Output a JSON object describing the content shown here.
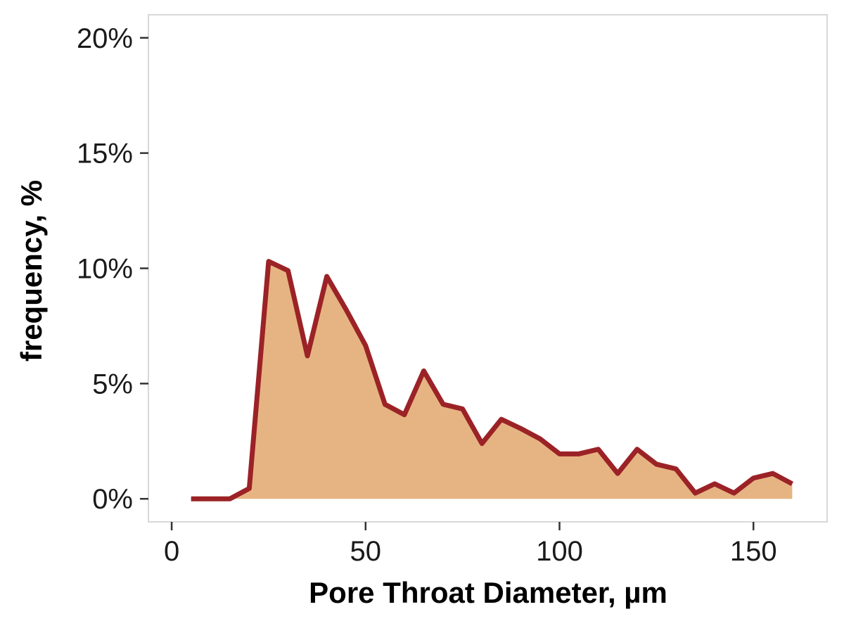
{
  "chart_data": {
    "type": "area",
    "title": "",
    "xlabel": "Pore Throat Diameter, µm",
    "ylabel": "frequency, %",
    "xlim": [
      -6,
      169
    ],
    "ylim": [
      -1,
      21
    ],
    "x_ticks": [
      0,
      50,
      100,
      150
    ],
    "x_tick_labels": [
      "0",
      "50",
      "100",
      "150"
    ],
    "y_ticks": [
      0,
      5,
      10,
      15,
      20
    ],
    "y_tick_labels": [
      "0%",
      "5%",
      "10%",
      "15%",
      "20%"
    ],
    "grid": false,
    "legend": "none",
    "series": [
      {
        "x": [
          5,
          10,
          15,
          20,
          25,
          30,
          35,
          40,
          45,
          50,
          55,
          60,
          65,
          70,
          75,
          80,
          85,
          90,
          95,
          100,
          105,
          110,
          115,
          120,
          125,
          130,
          135,
          140,
          145,
          150,
          155,
          160
        ],
        "y": [
          0,
          0,
          0,
          0.45,
          10.3,
          9.9,
          6.2,
          9.65,
          8.2,
          6.65,
          4.1,
          3.65,
          5.55,
          4.1,
          3.9,
          2.4,
          3.45,
          3.05,
          2.6,
          1.95,
          1.95,
          2.15,
          1.1,
          2.15,
          1.5,
          1.3,
          0.25,
          0.65,
          0.25,
          0.9,
          1.1,
          0.65
        ]
      }
    ],
    "colors": {
      "fill": "#e6b482",
      "line": "#9b2226",
      "axis": "#333333",
      "panel_border": "#cccccc"
    }
  }
}
